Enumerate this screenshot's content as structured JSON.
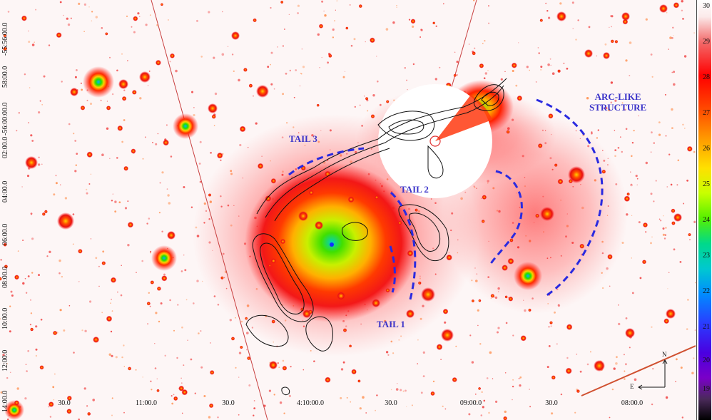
{
  "annotations": {
    "arc": "ARC-LIKE\nSTRUCTURE",
    "tail1": "TAIL 1",
    "tail2": "TAIL 2",
    "tail3": "TAIL 3"
  },
  "ra_ticks": [
    "30.0",
    "11:00.0",
    "30.0",
    "4:10:00.0",
    "30.0",
    "09:00.0",
    "30.0",
    "08:00.0"
  ],
  "dec_ticks": [
    "-55:56:00.0",
    "58:00.0",
    "-56:00:00.0",
    "02:00.0",
    "04:00.0",
    "06:00.0",
    "08:00.0",
    "10:00.0",
    "12:00.0",
    "14:00.0"
  ],
  "colorbar_labels": [
    "30",
    "29",
    "28",
    "27",
    "26",
    "25",
    "24",
    "23",
    "22",
    "21",
    "20",
    "19"
  ],
  "compass": {
    "north": "N",
    "east": "E"
  },
  "colors": {
    "annotation_blue": "#3b34c9",
    "dashed_curve": "#2a2ae0",
    "contour": "#111111",
    "source_red": "#e8110e"
  }
}
